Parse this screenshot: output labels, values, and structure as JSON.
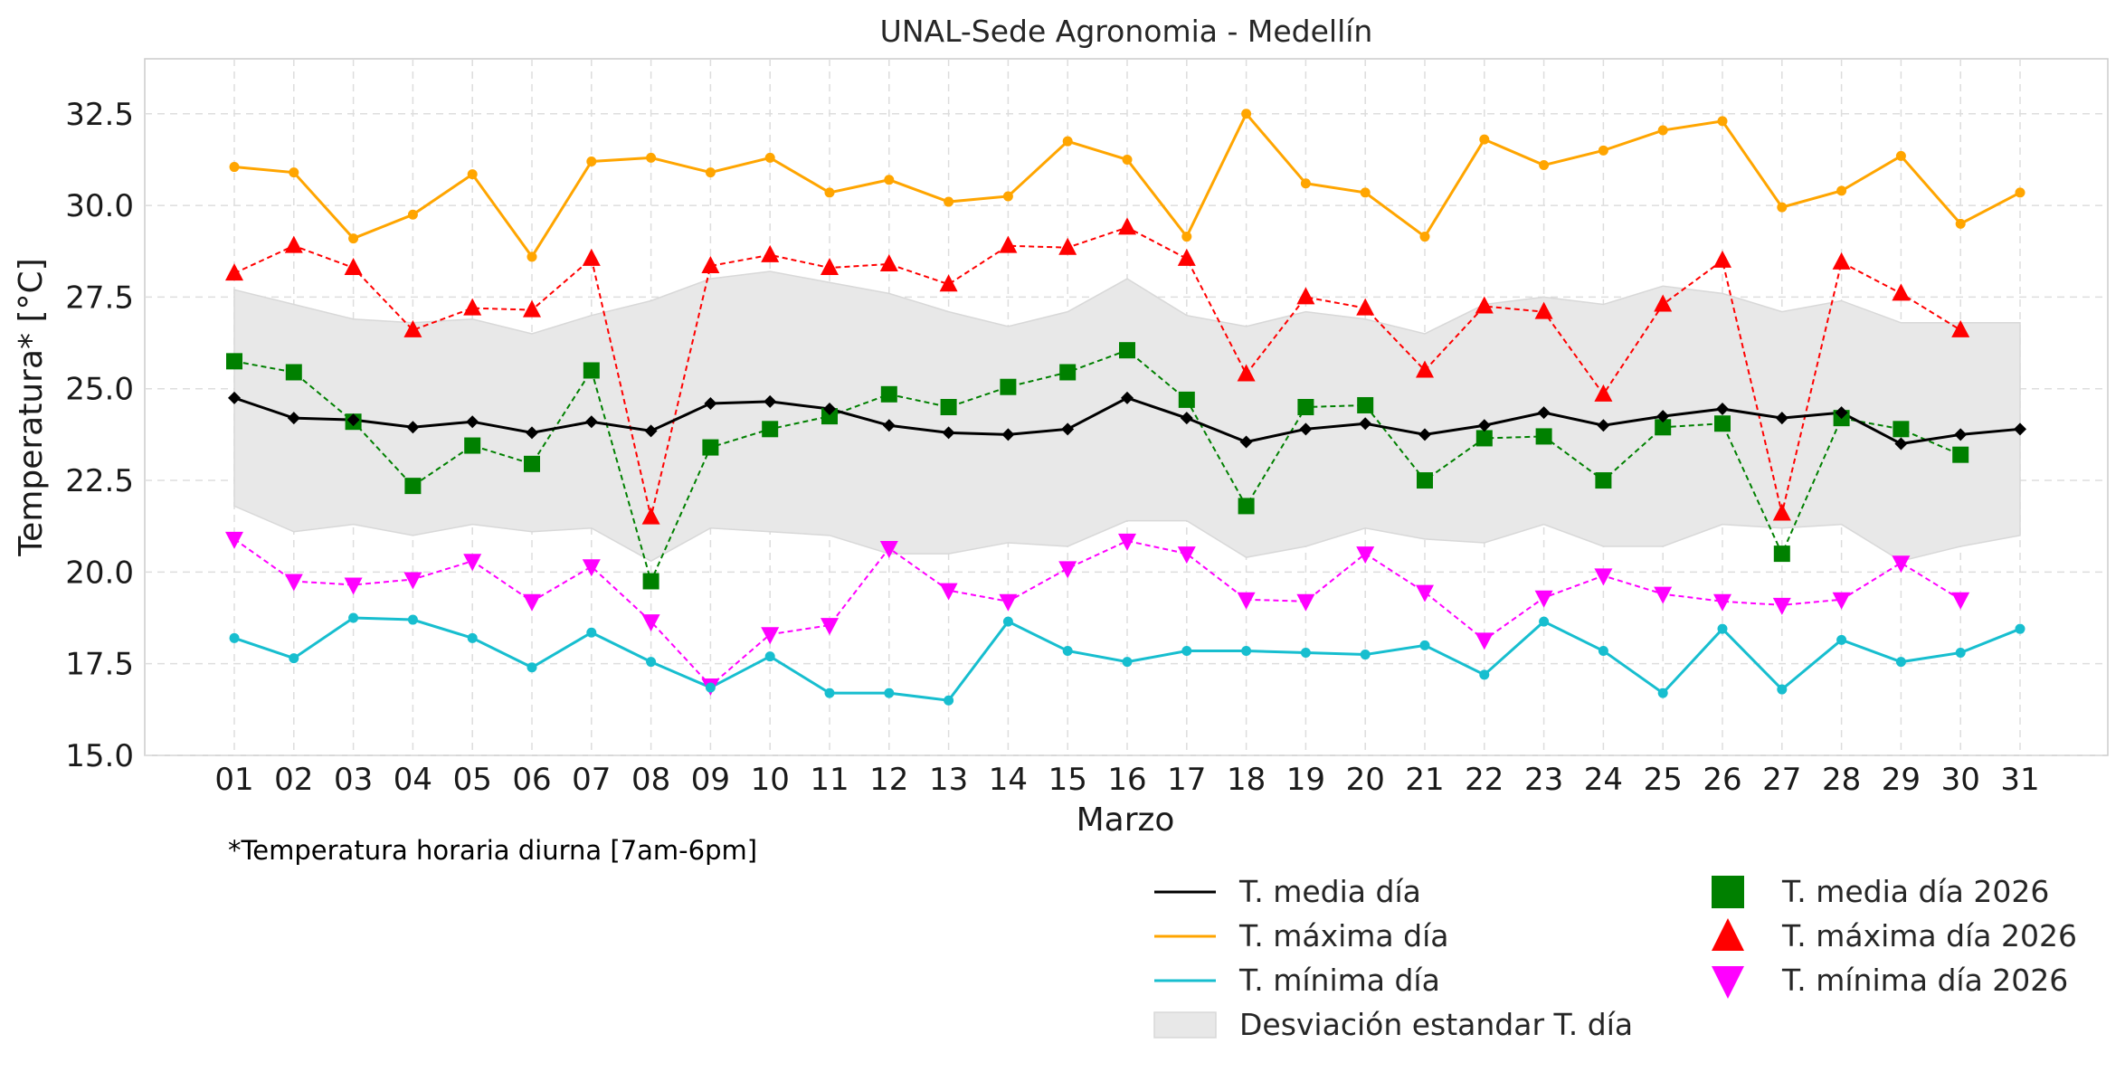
{
  "chart_data": {
    "type": "line",
    "title": "UNAL-Sede Agronomia - Medellín",
    "xlabel": "Marzo",
    "ylabel": "Temperatura* [°C]",
    "note": "*Temperatura horaria diurna [7am-6pm]",
    "categories": [
      "01",
      "02",
      "03",
      "04",
      "05",
      "06",
      "07",
      "08",
      "09",
      "10",
      "11",
      "12",
      "13",
      "14",
      "15",
      "16",
      "17",
      "18",
      "19",
      "20",
      "21",
      "22",
      "23",
      "24",
      "25",
      "26",
      "27",
      "28",
      "29",
      "30",
      "31"
    ],
    "ylim": [
      15.0,
      34.0
    ],
    "yticks": [
      "15.0",
      "17.5",
      "20.0",
      "22.5",
      "25.0",
      "27.5",
      "30.0",
      "32.5"
    ],
    "grid": true,
    "legend_position": "bottom-right, outside plot",
    "band": {
      "name": "Desviación estandar T. día",
      "color": "#e8e8e8",
      "upper": [
        27.7,
        27.3,
        26.9,
        26.8,
        26.9,
        26.5,
        27.0,
        27.4,
        28.0,
        28.2,
        27.9,
        27.6,
        27.1,
        26.7,
        27.1,
        28.0,
        27.0,
        26.7,
        27.1,
        26.9,
        26.5,
        27.3,
        27.5,
        27.3,
        27.8,
        27.6,
        27.1,
        27.4,
        26.8,
        26.8,
        26.8
      ],
      "lower": [
        21.8,
        21.1,
        21.3,
        21.0,
        21.3,
        21.1,
        21.2,
        20.3,
        21.2,
        21.1,
        21.0,
        20.5,
        20.5,
        20.8,
        20.7,
        21.4,
        21.4,
        20.4,
        20.7,
        21.2,
        20.9,
        20.8,
        21.3,
        20.7,
        20.7,
        21.3,
        21.2,
        21.3,
        20.3,
        20.7,
        21.0
      ]
    },
    "series": [
      {
        "name": "T. media día",
        "color": "#000000",
        "style": "solid",
        "marker": "diamond",
        "values": [
          24.75,
          24.2,
          24.15,
          23.95,
          24.1,
          23.8,
          24.1,
          23.85,
          24.6,
          24.65,
          24.45,
          24.0,
          23.8,
          23.75,
          23.9,
          24.75,
          24.2,
          23.55,
          23.9,
          24.05,
          23.75,
          24.0,
          24.35,
          24.0,
          24.25,
          24.45,
          24.2,
          24.35,
          23.5,
          23.75,
          23.9
        ]
      },
      {
        "name": "T. máxima día",
        "color": "#ffa500",
        "style": "solid",
        "marker": "dot",
        "values": [
          31.05,
          30.9,
          29.1,
          29.75,
          30.85,
          28.6,
          31.2,
          31.3,
          30.9,
          31.3,
          30.35,
          30.7,
          30.1,
          30.25,
          31.75,
          31.25,
          29.15,
          32.5,
          30.6,
          30.35,
          29.15,
          31.8,
          31.1,
          31.5,
          32.05,
          32.3,
          29.95,
          30.4,
          31.35,
          29.5,
          30.35
        ]
      },
      {
        "name": "T. mínima día",
        "color": "#17becf",
        "style": "solid",
        "marker": "dot",
        "values": [
          18.2,
          17.65,
          18.75,
          18.7,
          18.2,
          17.4,
          18.35,
          17.55,
          16.85,
          17.7,
          16.7,
          16.7,
          16.5,
          18.65,
          17.85,
          17.55,
          17.85,
          17.85,
          17.8,
          17.75,
          18.0,
          17.2,
          18.65,
          17.85,
          16.7,
          18.45,
          16.8,
          18.15,
          17.55,
          17.8,
          18.45
        ]
      },
      {
        "name": "T. media día 2026",
        "color": "#008000",
        "style": "dashed",
        "marker": "square",
        "values": [
          25.75,
          25.45,
          24.1,
          22.35,
          23.45,
          22.95,
          25.5,
          19.75,
          23.4,
          23.9,
          24.25,
          24.85,
          24.5,
          25.05,
          25.45,
          26.05,
          24.7,
          21.8,
          24.5,
          24.55,
          22.5,
          23.65,
          23.7,
          22.5,
          23.95,
          24.05,
          20.5,
          24.2,
          23.9,
          23.2,
          null
        ]
      },
      {
        "name": "T. máxima día 2026",
        "color": "#ff0000",
        "style": "dashed",
        "marker": "triangle-up",
        "values": [
          28.15,
          28.9,
          28.3,
          26.6,
          27.2,
          27.15,
          28.55,
          21.5,
          28.35,
          28.65,
          28.3,
          28.4,
          27.85,
          28.9,
          28.85,
          29.4,
          28.55,
          25.4,
          27.5,
          27.2,
          25.5,
          27.25,
          27.1,
          24.85,
          27.3,
          28.5,
          21.6,
          28.45,
          27.6,
          26.6,
          null
        ]
      },
      {
        "name": "T. mínima día 2026",
        "color": "#ff00ff",
        "style": "dashed",
        "marker": "triangle-down",
        "values": [
          20.9,
          19.75,
          19.65,
          19.8,
          20.3,
          19.2,
          20.15,
          18.65,
          16.9,
          18.3,
          18.55,
          20.65,
          19.5,
          19.2,
          20.1,
          20.85,
          20.5,
          19.25,
          19.2,
          20.5,
          19.45,
          18.15,
          19.3,
          19.9,
          19.4,
          19.2,
          19.1,
          19.25,
          20.25,
          19.25,
          null
        ]
      }
    ]
  }
}
